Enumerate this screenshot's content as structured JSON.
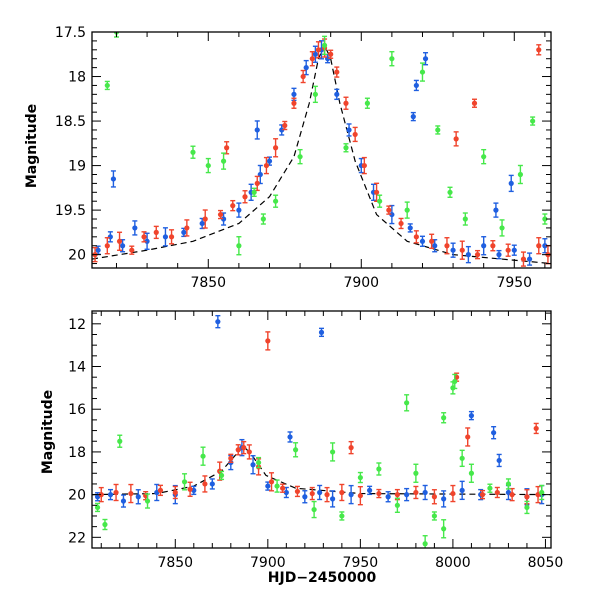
{
  "colors": {
    "blue": "#1f5fe0",
    "red": "#f0442c",
    "green": "#46e84a",
    "axis": "#000000"
  },
  "chart_data": [
    {
      "type": "scatter",
      "panel": "top",
      "ylabel": "Magnitude",
      "xlabel": "",
      "xlim": [
        7812,
        7962
      ],
      "ylim": [
        17.5,
        20.15
      ],
      "y_inverted": true,
      "xticks": [
        7850,
        7900,
        7950
      ],
      "yticks": [
        17.5,
        18,
        18.5,
        19,
        19.5,
        20
      ],
      "ytick_labels": [
        "17.5",
        "18",
        "18.5",
        "19",
        "19.5",
        "20"
      ],
      "error_bars": true,
      "model_curve": {
        "description": "dashed microlensing model",
        "x": [
          7812,
          7830,
          7845,
          7860,
          7870,
          7878,
          7883,
          7886,
          7888,
          7890,
          7893,
          7898,
          7905,
          7915,
          7930,
          7962
        ],
        "y": [
          20.05,
          19.95,
          19.85,
          19.65,
          19.35,
          18.9,
          18.3,
          17.8,
          17.65,
          17.8,
          18.3,
          18.95,
          19.55,
          19.85,
          20.0,
          20.1
        ]
      },
      "series": [
        {
          "color_key": "blue",
          "x": [
            7814,
            7818,
            7822,
            7826,
            7830,
            7836,
            7842,
            7848,
            7855,
            7860,
            7864,
            7867,
            7870,
            7874,
            7878,
            7882,
            7885,
            7887,
            7889,
            7892,
            7896,
            7900,
            7904,
            7910,
            7916,
            7920,
            7924,
            7930,
            7935,
            7940,
            7945,
            7950,
            7955,
            7960,
            7819,
            7866,
            7917,
            7918,
            7921,
            7944,
            7949
          ],
          "y": [
            19.95,
            19.8,
            19.9,
            19.7,
            19.85,
            19.8,
            19.75,
            19.65,
            19.6,
            19.5,
            19.3,
            19.1,
            18.95,
            18.6,
            18.2,
            17.9,
            17.75,
            17.7,
            17.8,
            18.2,
            18.6,
            19.0,
            19.3,
            19.55,
            19.7,
            19.85,
            19.9,
            19.95,
            20.0,
            19.9,
            20.0,
            19.95,
            20.05,
            19.9,
            19.15,
            18.6,
            18.45,
            18.1,
            17.8,
            19.5,
            19.2
          ]
        },
        {
          "color_key": "red",
          "x": [
            7813,
            7817,
            7821,
            7825,
            7829,
            7833,
            7838,
            7843,
            7849,
            7854,
            7858,
            7862,
            7866,
            7869,
            7872,
            7875,
            7878,
            7881,
            7884,
            7886,
            7888,
            7890,
            7892,
            7895,
            7898,
            7901,
            7905,
            7909,
            7913,
            7918,
            7923,
            7928,
            7933,
            7938,
            7943,
            7948,
            7953,
            7958,
            7961,
            7937,
            7958,
            7856,
            7931
          ],
          "y": [
            20.0,
            19.9,
            19.85,
            19.95,
            19.8,
            19.75,
            19.8,
            19.7,
            19.6,
            19.55,
            19.45,
            19.35,
            19.2,
            19.0,
            18.8,
            18.55,
            18.3,
            18.0,
            17.8,
            17.7,
            17.68,
            17.75,
            17.95,
            18.3,
            18.65,
            19.0,
            19.3,
            19.5,
            19.65,
            19.8,
            19.85,
            19.9,
            19.95,
            20.0,
            19.9,
            19.95,
            20.05,
            19.9,
            20.0,
            18.3,
            17.7,
            18.8,
            18.7
          ]
        },
        {
          "color_key": "green",
          "x": [
            7817,
            7820,
            7845,
            7850,
            7855,
            7860,
            7865,
            7868,
            7872,
            7880,
            7885,
            7888,
            7895,
            7902,
            7906,
            7910,
            7915,
            7920,
            7925,
            7929,
            7934,
            7940,
            7946,
            7952,
            7956,
            7960
          ],
          "y": [
            18.1,
            17.5,
            18.85,
            19.0,
            18.95,
            19.9,
            19.3,
            19.6,
            19.4,
            18.9,
            18.2,
            17.65,
            18.8,
            18.3,
            19.4,
            17.8,
            19.5,
            17.95,
            18.6,
            19.3,
            19.6,
            18.9,
            19.7,
            19.1,
            18.5,
            19.6
          ]
        }
      ]
    },
    {
      "type": "scatter",
      "panel": "bottom",
      "ylabel": "Magnitude",
      "xlabel": "HJD−2450000",
      "xlim": [
        7805,
        8053
      ],
      "ylim": [
        11.4,
        22.5
      ],
      "y_inverted": true,
      "xticks": [
        7850,
        7900,
        7950,
        8000,
        8050
      ],
      "yticks": [
        12,
        14,
        16,
        18,
        20,
        22
      ],
      "ytick_labels": [
        "12",
        "14",
        "16",
        "18",
        "20",
        "22"
      ],
      "error_bars": true,
      "model_curve": {
        "description": "baseline and peak model",
        "x": [
          7805,
          7840,
          7860,
          7875,
          7883,
          7887,
          7891,
          7899,
          7915,
          7950,
          8053
        ],
        "y": [
          20.0,
          19.95,
          19.6,
          18.9,
          18.1,
          17.75,
          18.1,
          19.1,
          19.7,
          19.95,
          20.0
        ]
      },
      "series": [
        {
          "color_key": "blue",
          "x": [
            7808,
            7815,
            7822,
            7830,
            7840,
            7850,
            7860,
            7870,
            7873,
            7880,
            7886,
            7892,
            7900,
            7910,
            7920,
            7928,
            7935,
            7945,
            7955,
            7965,
            7975,
            7985,
            7995,
            8005,
            8010,
            8015,
            8022,
            8030,
            8040,
            8048,
            7929,
            7912,
            8025
          ],
          "y": [
            20.1,
            20.0,
            20.3,
            20.1,
            19.9,
            20.0,
            19.8,
            19.5,
            11.9,
            18.5,
            17.8,
            18.6,
            19.6,
            19.9,
            20.1,
            19.9,
            20.2,
            20.0,
            19.8,
            20.1,
            20.0,
            19.9,
            20.2,
            19.8,
            16.3,
            20.0,
            17.1,
            19.9,
            20.1,
            20.0,
            12.4,
            17.3,
            18.4
          ]
        },
        {
          "color_key": "red",
          "x": [
            7810,
            7818,
            7826,
            7834,
            7842,
            7850,
            7858,
            7866,
            7874,
            7880,
            7884,
            7887,
            7890,
            7895,
            7902,
            7908,
            7916,
            7924,
            7932,
            7940,
            7950,
            7960,
            7970,
            7980,
            7990,
            8000,
            8008,
            8016,
            8024,
            8032,
            8040,
            8046,
            7900,
            8002,
            8045,
            7945
          ],
          "y": [
            20.0,
            19.9,
            19.95,
            20.05,
            19.8,
            19.9,
            19.75,
            19.5,
            18.9,
            18.3,
            17.9,
            17.8,
            18.0,
            18.7,
            19.4,
            19.7,
            19.85,
            19.95,
            20.0,
            19.9,
            20.05,
            19.95,
            20.0,
            19.9,
            20.1,
            19.95,
            17.3,
            20.0,
            19.9,
            20.0,
            20.1,
            20.0,
            12.8,
            14.5,
            16.9,
            17.8
          ]
        },
        {
          "color_key": "green",
          "x": [
            7808,
            7812,
            7820,
            7835,
            7855,
            7865,
            7875,
            7895,
            7905,
            7915,
            7925,
            7935,
            7940,
            7950,
            7960,
            7970,
            7975,
            7980,
            7990,
            7995,
            8000,
            8001,
            8005,
            8010,
            8020,
            8030,
            8040,
            8048,
            7985,
            7995
          ],
          "y": [
            20.6,
            21.4,
            17.5,
            20.3,
            19.4,
            18.2,
            19.1,
            18.5,
            19.6,
            17.9,
            20.7,
            18.0,
            21.0,
            19.2,
            18.8,
            20.5,
            15.7,
            19.0,
            21.0,
            16.4,
            15.0,
            14.7,
            18.3,
            19.0,
            19.7,
            19.5,
            20.6,
            19.9,
            22.3,
            21.6
          ]
        }
      ]
    }
  ]
}
